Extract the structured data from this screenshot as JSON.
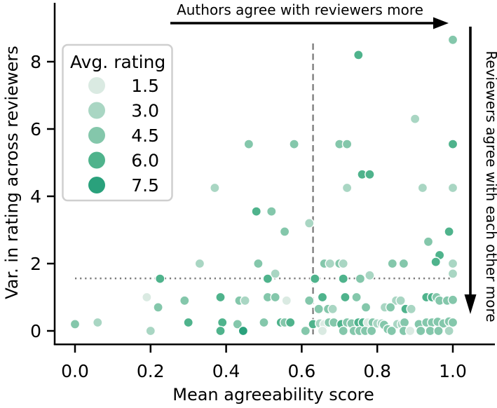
{
  "chart_data": {
    "type": "scatter",
    "xlabel": "Mean agreeability score",
    "ylabel": "Var. in rating across reviewers",
    "xlim": [
      -0.07,
      1.11
    ],
    "ylim": [
      -0.4,
      9.65
    ],
    "x_ticks": [
      0.0,
      0.2,
      0.4,
      0.6,
      0.8,
      1.0
    ],
    "x_tick_labels": [
      "0.0",
      "0.2",
      "0.4",
      "0.6",
      "0.8",
      "1.0"
    ],
    "y_ticks": [
      0,
      2,
      4,
      6,
      8
    ],
    "y_tick_labels": [
      "0",
      "2",
      "4",
      "6",
      "8"
    ],
    "grid": false,
    "legend": {
      "title": "Avg. rating",
      "position": "upper-left",
      "entries": [
        {
          "label": "1.5",
          "color": "#daeae2"
        },
        {
          "label": "3.0",
          "color": "#a9d6c3"
        },
        {
          "label": "4.5",
          "color": "#84c7ab"
        },
        {
          "label": "6.0",
          "color": "#4fb38c"
        },
        {
          "label": "7.5",
          "color": "#2aa17c"
        }
      ]
    },
    "annotations": {
      "top": "Authors agree with reviewers more",
      "right": "Reviewers agree with each other more"
    },
    "reference_lines": {
      "vertical_dashed_x": 0.63,
      "horizontal_dotted_y": 1.56,
      "color": "#7a7a7a"
    },
    "point_style": {
      "radius": 6.6,
      "edge_color": "#ffffff"
    },
    "color_map": {
      "1.5": "#daeae2",
      "3.0": "#a9d6c3",
      "4.5": "#84c7ab",
      "6.0": "#4fb38c",
      "7.5": "#2aa17c"
    },
    "points_format": [
      "mean_agreeability",
      "variance_in_rating",
      "avg_rating"
    ],
    "points": [
      [
        0.0,
        0.2,
        4.5
      ],
      [
        0.06,
        0.25,
        3.0
      ],
      [
        0.19,
        1.0,
        1.5
      ],
      [
        0.2,
        0.0,
        3.0
      ],
      [
        0.22,
        0.7,
        4.5
      ],
      [
        0.225,
        1.55,
        6.0
      ],
      [
        0.29,
        0.9,
        4.5
      ],
      [
        0.3,
        0.25,
        6.0
      ],
      [
        0.33,
        2.0,
        3.0
      ],
      [
        0.385,
        1.0,
        6.0
      ],
      [
        0.39,
        0.25,
        6.0
      ],
      [
        0.385,
        0.0,
        6.0
      ],
      [
        0.43,
        0.2,
        4.5
      ],
      [
        0.435,
        0.9,
        4.5
      ],
      [
        0.45,
        0.9,
        3.0
      ],
      [
        0.445,
        0.0,
        7.5
      ],
      [
        0.37,
        4.25,
        3.0
      ],
      [
        0.46,
        5.55,
        4.5
      ],
      [
        0.48,
        3.55,
        6.0
      ],
      [
        0.52,
        3.55,
        4.5
      ],
      [
        0.485,
        2.0,
        4.5
      ],
      [
        0.51,
        1.55,
        6.0
      ],
      [
        0.53,
        1.7,
        3.0
      ],
      [
        0.5,
        0.25,
        4.5
      ],
      [
        0.51,
        1.0,
        4.5
      ],
      [
        0.53,
        1.0,
        4.5
      ],
      [
        0.545,
        0.25,
        6.0
      ],
      [
        0.555,
        0.25,
        4.5
      ],
      [
        0.57,
        0.25,
        6.0
      ],
      [
        0.58,
        5.55,
        4.5
      ],
      [
        0.7,
        5.55,
        4.5
      ],
      [
        0.72,
        5.55,
        4.5
      ],
      [
        1.0,
        5.55,
        6.0
      ],
      [
        0.75,
        8.2,
        6.0
      ],
      [
        1.0,
        8.65,
        4.5
      ],
      [
        0.9,
        6.3,
        3.0
      ],
      [
        0.76,
        4.65,
        6.0
      ],
      [
        0.78,
        4.65,
        6.0
      ],
      [
        0.72,
        4.25,
        3.0
      ],
      [
        0.92,
        4.25,
        3.0
      ],
      [
        1.0,
        4.25,
        3.0
      ],
      [
        0.62,
        3.2,
        3.0
      ],
      [
        0.555,
        2.95,
        4.5
      ],
      [
        0.99,
        2.95,
        6.0
      ],
      [
        0.935,
        2.65,
        4.5
      ],
      [
        0.965,
        2.25,
        6.0
      ],
      [
        0.66,
        2.0,
        4.5
      ],
      [
        0.675,
        2.0,
        3.0
      ],
      [
        0.7,
        2.0,
        4.5
      ],
      [
        0.71,
        2.0,
        3.0
      ],
      [
        0.84,
        2.0,
        4.5
      ],
      [
        0.87,
        2.0,
        4.5
      ],
      [
        0.955,
        2.05,
        6.0
      ],
      [
        1.0,
        2.0,
        3.0
      ],
      [
        1.0,
        1.7,
        3.0
      ],
      [
        0.635,
        1.55,
        6.0
      ],
      [
        0.71,
        1.55,
        6.0
      ],
      [
        0.755,
        1.55,
        4.5
      ],
      [
        0.78,
        1.65,
        3.0
      ],
      [
        0.56,
        0.9,
        1.5
      ],
      [
        0.62,
        0.9,
        4.5
      ],
      [
        0.655,
        1.0,
        6.0
      ],
      [
        0.715,
        1.0,
        6.0
      ],
      [
        0.745,
        1.0,
        4.5
      ],
      [
        0.85,
        0.9,
        3.0
      ],
      [
        0.862,
        0.9,
        3.0
      ],
      [
        0.93,
        1.0,
        6.0
      ],
      [
        0.945,
        1.0,
        6.0
      ],
      [
        0.957,
        1.0,
        4.5
      ],
      [
        0.965,
        0.9,
        4.5
      ],
      [
        0.985,
        0.9,
        4.5
      ],
      [
        1.0,
        0.92,
        4.5
      ],
      [
        0.645,
        0.65,
        4.5
      ],
      [
        0.67,
        0.65,
        4.5
      ],
      [
        0.682,
        0.65,
        3.0
      ],
      [
        0.77,
        0.7,
        4.5
      ],
      [
        0.82,
        0.7,
        3.0
      ],
      [
        0.835,
        0.7,
        4.5
      ],
      [
        0.875,
        0.65,
        6.0
      ],
      [
        0.89,
        0.65,
        3.0
      ],
      [
        0.63,
        0.2,
        6.0
      ],
      [
        0.648,
        0.22,
        3.0
      ],
      [
        0.66,
        0.2,
        1.5
      ],
      [
        0.672,
        0.25,
        4.5
      ],
      [
        0.685,
        0.25,
        4.5
      ],
      [
        0.705,
        0.2,
        6.0
      ],
      [
        0.72,
        0.25,
        4.5
      ],
      [
        0.732,
        0.22,
        4.5
      ],
      [
        0.75,
        0.25,
        6.0
      ],
      [
        0.762,
        0.25,
        6.0
      ],
      [
        0.775,
        0.25,
        1.5
      ],
      [
        0.788,
        0.25,
        4.5
      ],
      [
        0.8,
        0.22,
        3.0
      ],
      [
        0.812,
        0.22,
        3.0
      ],
      [
        0.818,
        0.18,
        4.5
      ],
      [
        0.853,
        0.2,
        3.0
      ],
      [
        0.865,
        0.2,
        3.0
      ],
      [
        0.872,
        0.25,
        4.5
      ],
      [
        0.91,
        0.2,
        4.5
      ],
      [
        0.93,
        0.25,
        4.5
      ],
      [
        0.945,
        0.25,
        4.5
      ],
      [
        0.96,
        0.27,
        4.5
      ],
      [
        0.975,
        0.22,
        4.5
      ],
      [
        0.99,
        0.28,
        4.5
      ],
      [
        1.0,
        0.25,
        4.5
      ],
      [
        0.61,
        0.0,
        4.5
      ],
      [
        0.655,
        0.0,
        1.5
      ],
      [
        0.71,
        0.0,
        4.5
      ],
      [
        0.738,
        0.0,
        4.5
      ],
      [
        0.753,
        0.0,
        4.5
      ],
      [
        0.768,
        0.0,
        4.5
      ],
      [
        0.785,
        0.0,
        4.5
      ],
      [
        0.828,
        0.05,
        4.5
      ],
      [
        0.838,
        0.0,
        4.5
      ],
      [
        0.87,
        0.0,
        4.5
      ],
      [
        0.887,
        0.0,
        1.5
      ],
      [
        0.915,
        0.0,
        4.5
      ],
      [
        0.94,
        0.0,
        4.5
      ],
      [
        0.962,
        0.0,
        4.5
      ],
      [
        0.99,
        0.0,
        3.0
      ]
    ]
  }
}
